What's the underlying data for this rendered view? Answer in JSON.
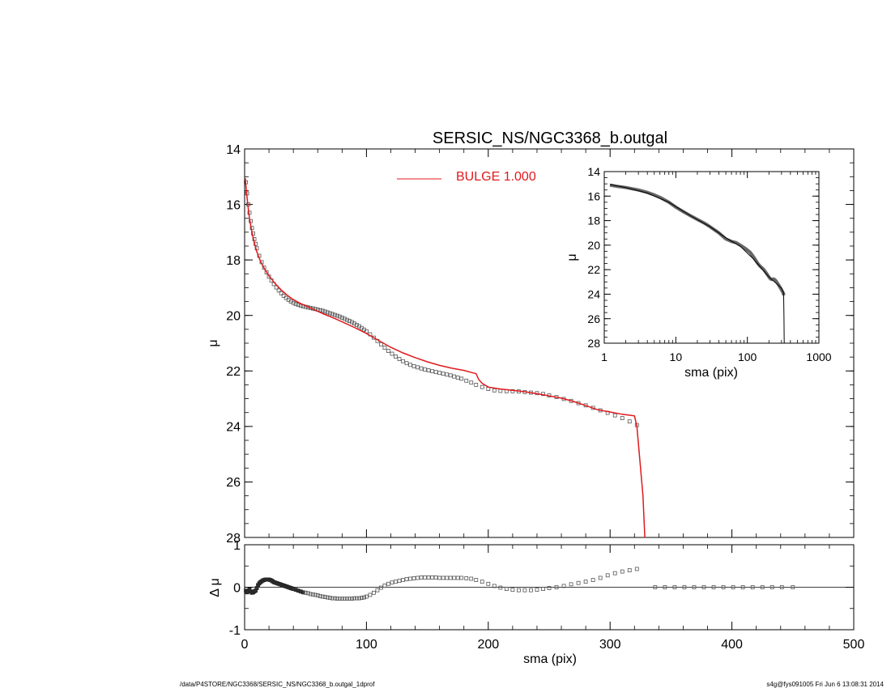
{
  "title": "SERSIC_NS/NGC3368_b.outgal",
  "footer": {
    "left": "/data/P4STORE/NGC3368/SERSIC_NS/NGC3368_b.outgal_1dprof",
    "right": "s4g@fys091005  Fri Jun  6 13:08:31 2014"
  },
  "colors": {
    "model": "#e0191d",
    "data": "#555555",
    "axis": "#000000"
  },
  "chart_data": [
    {
      "id": "main",
      "type": "scatter",
      "xlabel": "",
      "ylabel": "μ",
      "xlim": [
        0,
        500
      ],
      "ylim": [
        28,
        14
      ],
      "yticks": [
        14,
        16,
        18,
        20,
        22,
        24,
        26,
        28
      ],
      "xticks": [
        0,
        100,
        200,
        300,
        400,
        500
      ],
      "legend": {
        "placement": "top-center",
        "entries": [
          "BULGE  1.000"
        ]
      },
      "series": [
        {
          "role": "data",
          "marker": "open-square",
          "x": [
            1,
            2,
            3,
            4,
            5,
            6,
            7,
            8,
            9,
            10,
            12,
            14,
            16,
            18,
            20,
            22,
            24,
            26,
            28,
            30,
            32,
            34,
            36,
            38,
            40,
            42,
            44,
            46,
            48,
            50,
            52,
            54,
            56,
            58,
            60,
            62,
            64,
            66,
            68,
            70,
            72,
            74,
            76,
            78,
            80,
            82,
            84,
            86,
            88,
            90,
            92,
            94,
            96,
            98,
            100,
            103,
            106,
            109,
            112,
            115,
            118,
            121,
            124,
            127,
            130,
            133,
            136,
            139,
            142,
            145,
            148,
            151,
            154,
            157,
            160,
            163,
            166,
            169,
            172,
            175,
            178,
            182,
            186,
            190,
            195,
            200,
            205,
            210,
            215,
            220,
            225,
            230,
            235,
            240,
            245,
            250,
            256,
            262,
            268,
            274,
            280,
            286,
            292,
            298,
            304,
            310,
            316,
            322
          ],
          "y": [
            15.2,
            15.6,
            16.0,
            16.3,
            16.6,
            16.85,
            17.05,
            17.25,
            17.42,
            17.58,
            17.85,
            18.08,
            18.28,
            18.45,
            18.6,
            18.74,
            18.87,
            18.99,
            19.1,
            19.2,
            19.29,
            19.37,
            19.44,
            19.5,
            19.55,
            19.59,
            19.62,
            19.65,
            19.67,
            19.69,
            19.71,
            19.73,
            19.75,
            19.77,
            19.79,
            19.81,
            19.83,
            19.86,
            19.89,
            19.92,
            19.95,
            19.98,
            20.01,
            20.04,
            20.08,
            20.12,
            20.16,
            20.2,
            20.24,
            20.29,
            20.34,
            20.39,
            20.45,
            20.51,
            20.57,
            20.68,
            20.8,
            20.92,
            21.04,
            21.16,
            21.28,
            21.38,
            21.48,
            21.57,
            21.65,
            21.72,
            21.78,
            21.83,
            21.87,
            21.91,
            21.95,
            21.98,
            22.01,
            22.04,
            22.07,
            22.1,
            22.13,
            22.16,
            22.2,
            22.24,
            22.28,
            22.35,
            22.42,
            22.5,
            22.58,
            22.65,
            22.7,
            22.72,
            22.73,
            22.73,
            22.74,
            22.76,
            22.78,
            22.8,
            22.83,
            22.88,
            22.94,
            23.01,
            23.08,
            23.16,
            23.24,
            23.33,
            23.42,
            23.51,
            23.6,
            23.7,
            23.82,
            23.95
          ]
        },
        {
          "role": "model",
          "name": "BULGE  1.000",
          "x": [
            0.5,
            1,
            2,
            3,
            4,
            6,
            8,
            10,
            13,
            16,
            20,
            25,
            30,
            35,
            40,
            45,
            50,
            55,
            60,
            65,
            70,
            75,
            80,
            90,
            100,
            110,
            120,
            130,
            140,
            150,
            160,
            170,
            180,
            190,
            192,
            195,
            200,
            210,
            220,
            230,
            240,
            250,
            260,
            270,
            280,
            290,
            300,
            310,
            320,
            322,
            325,
            327,
            328,
            328.5
          ],
          "y": [
            15.05,
            15.3,
            15.75,
            16.15,
            16.5,
            17.0,
            17.38,
            17.7,
            18.05,
            18.3,
            18.58,
            18.85,
            19.08,
            19.27,
            19.43,
            19.55,
            19.65,
            19.75,
            19.85,
            19.95,
            20.04,
            20.13,
            20.23,
            20.43,
            20.65,
            20.9,
            21.15,
            21.35,
            21.52,
            21.67,
            21.8,
            21.9,
            21.98,
            22.1,
            22.3,
            22.45,
            22.58,
            22.65,
            22.7,
            22.75,
            22.82,
            22.9,
            22.98,
            23.1,
            23.25,
            23.4,
            23.48,
            23.56,
            23.62,
            24.0,
            25.5,
            26.5,
            27.5,
            28.0
          ]
        }
      ]
    },
    {
      "id": "inset",
      "type": "line",
      "xlabel": "sma (pix)",
      "ylabel": "μ",
      "xscale": "log",
      "xlim": [
        1,
        1000
      ],
      "ylim": [
        28,
        14
      ],
      "xticks": [
        1,
        10,
        100,
        1000
      ],
      "xticklabels": [
        "1",
        "10",
        "100",
        "1000"
      ],
      "yticks": [
        14,
        16,
        18,
        20,
        22,
        24,
        26,
        28
      ],
      "series": [
        {
          "role": "data",
          "x": [
            1.2,
            1.5,
            2,
            3,
            4,
            5,
            6,
            8,
            10,
            13,
            16,
            20,
            25,
            30,
            40,
            50,
            60,
            70,
            80,
            90,
            100,
            110,
            120,
            130,
            140,
            150,
            160,
            170,
            180,
            190,
            200,
            210,
            220,
            230,
            240,
            250,
            260,
            270,
            280,
            290,
            300,
            310,
            320,
            322
          ],
          "y": [
            15.1,
            15.2,
            15.3,
            15.5,
            15.7,
            15.9,
            16.1,
            16.5,
            16.9,
            17.3,
            17.6,
            17.9,
            18.2,
            18.5,
            19.0,
            19.5,
            19.7,
            19.8,
            20.0,
            20.2,
            20.4,
            20.6,
            20.9,
            21.2,
            21.5,
            21.7,
            21.85,
            22.0,
            22.2,
            22.4,
            22.6,
            22.75,
            22.8,
            22.75,
            22.8,
            22.9,
            23.05,
            23.2,
            23.35,
            23.5,
            23.65,
            23.8,
            23.95,
            24.1
          ]
        },
        {
          "role": "model",
          "x": [
            1.2,
            2,
            4,
            8,
            16,
            30,
            50,
            80,
            120,
            200,
            300,
            320,
            322,
            325,
            327,
            328
          ],
          "y": [
            15.05,
            15.3,
            15.75,
            16.5,
            17.6,
            18.5,
            19.4,
            20.1,
            21.1,
            22.6,
            23.5,
            23.9,
            24.2,
            26.0,
            27.5,
            28.0
          ]
        }
      ]
    },
    {
      "id": "residual",
      "type": "scatter",
      "xlabel": "sma (pix)",
      "ylabel": "Δ μ",
      "xlim": [
        0,
        500
      ],
      "ylim": [
        -1,
        1
      ],
      "xticks": [
        0,
        100,
        200,
        300,
        400,
        500
      ],
      "yticks": [
        -1,
        0,
        1
      ],
      "series": [
        {
          "role": "residual",
          "marker": "open-square",
          "x": [
            1,
            2,
            3,
            4,
            5,
            6,
            7,
            8,
            9,
            10,
            11,
            12,
            13,
            14,
            15,
            16,
            17,
            18,
            19,
            20,
            21,
            22,
            23,
            24,
            25,
            26,
            27,
            28,
            29,
            30,
            31,
            32,
            33,
            34,
            35,
            36,
            37,
            38,
            39,
            40,
            42,
            44,
            46,
            48,
            50,
            52,
            54,
            56,
            58,
            60,
            62,
            64,
            66,
            68,
            70,
            72,
            74,
            76,
            78,
            80,
            82,
            84,
            86,
            88,
            90,
            92,
            94,
            96,
            98,
            100,
            103,
            106,
            109,
            112,
            115,
            118,
            121,
            124,
            127,
            130,
            133,
            136,
            139,
            142,
            145,
            148,
            151,
            154,
            157,
            160,
            163,
            166,
            169,
            172,
            175,
            178,
            182,
            186,
            190,
            195,
            200,
            205,
            210,
            215,
            220,
            225,
            230,
            235,
            240,
            245,
            250,
            256,
            262,
            268,
            274,
            280,
            286,
            292,
            298,
            304,
            310,
            316,
            322,
            337,
            345,
            353,
            361,
            369,
            377,
            385,
            393,
            401,
            409,
            417,
            425,
            433,
            441,
            450
          ],
          "y": [
            -0.08,
            -0.12,
            -0.1,
            -0.05,
            -0.1,
            -0.13,
            -0.12,
            -0.1,
            -0.08,
            -0.02,
            0.05,
            0.09,
            0.12,
            0.14,
            0.16,
            0.17,
            0.18,
            0.18,
            0.18,
            0.18,
            0.17,
            0.16,
            0.14,
            0.12,
            0.11,
            0.1,
            0.09,
            0.08,
            0.07,
            0.06,
            0.05,
            0.04,
            0.03,
            0.02,
            0.01,
            0.0,
            -0.01,
            -0.02,
            -0.03,
            -0.04,
            -0.06,
            -0.08,
            -0.1,
            -0.12,
            -0.13,
            -0.14,
            -0.16,
            -0.17,
            -0.18,
            -0.19,
            -0.21,
            -0.22,
            -0.23,
            -0.24,
            -0.25,
            -0.26,
            -0.26,
            -0.27,
            -0.27,
            -0.27,
            -0.27,
            -0.27,
            -0.27,
            -0.27,
            -0.26,
            -0.26,
            -0.26,
            -0.25,
            -0.24,
            -0.22,
            -0.18,
            -0.13,
            -0.07,
            -0.01,
            0.04,
            0.08,
            0.11,
            0.13,
            0.15,
            0.17,
            0.19,
            0.2,
            0.21,
            0.22,
            0.23,
            0.23,
            0.23,
            0.23,
            0.23,
            0.22,
            0.22,
            0.22,
            0.22,
            0.22,
            0.22,
            0.22,
            0.21,
            0.2,
            0.17,
            0.13,
            0.08,
            0.03,
            -0.01,
            -0.04,
            -0.06,
            -0.07,
            -0.07,
            -0.07,
            -0.06,
            -0.04,
            -0.02,
            0.0,
            0.03,
            0.07,
            0.1,
            0.13,
            0.17,
            0.22,
            0.28,
            0.33,
            0.37,
            0.4,
            0.43,
            0.0,
            0.0,
            0.0,
            0.0,
            0.0,
            0.0,
            0.0,
            0.0,
            0.0,
            0.0,
            0.0,
            0.0,
            0.0,
            0.0,
            0.0
          ]
        }
      ]
    }
  ]
}
